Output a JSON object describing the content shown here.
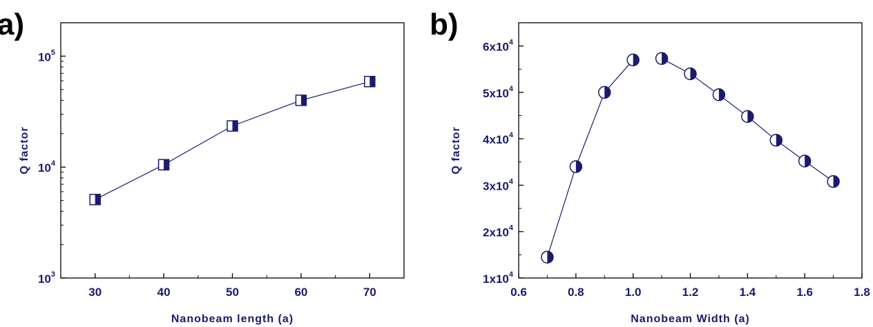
{
  "chart_data": [
    {
      "panel": "a)",
      "type": "scatter",
      "xlabel": "Nanobeam length (a)",
      "ylabel": "Q factor",
      "x": [
        30,
        40,
        50,
        60,
        70
      ],
      "y": [
        5100,
        10500,
        23500,
        40000,
        59000
      ],
      "xlim": [
        25,
        75
      ],
      "ylim": [
        1000,
        200000
      ],
      "yscale": "log",
      "xticks": [
        30,
        40,
        50,
        60,
        70
      ],
      "xtick_labels": [
        "30",
        "40",
        "50",
        "60",
        "70"
      ],
      "yticks": [
        1000,
        10000,
        100000
      ],
      "ytick_labels": [
        {
          "base": "10",
          "exp": "3"
        },
        {
          "base": "10",
          "exp": "4"
        },
        {
          "base": "10",
          "exp": "5"
        }
      ],
      "marker": "half-filled-square",
      "connected": true,
      "grid": false,
      "legend": false
    },
    {
      "panel": "b)",
      "type": "scatter",
      "xlabel": "Nanobeam Width (a)",
      "ylabel": "Q factor",
      "x": [
        0.7,
        0.8,
        0.9,
        1.0,
        1.1,
        1.2,
        1.3,
        1.4,
        1.5,
        1.6,
        1.7
      ],
      "y": [
        14500,
        34000,
        50000,
        57000,
        57300,
        54000,
        49500,
        44800,
        39700,
        35200,
        30800
      ],
      "segments": [
        [
          0,
          3
        ],
        [
          4,
          10
        ]
      ],
      "xlim": [
        0.6,
        1.8
      ],
      "ylim": [
        10000,
        65000
      ],
      "yscale": "linear",
      "xticks": [
        0.6,
        0.8,
        1.0,
        1.2,
        1.4,
        1.6,
        1.8
      ],
      "xtick_labels": [
        "0.6",
        "0.8",
        "1.0",
        "1.2",
        "1.4",
        "1.6",
        "1.8"
      ],
      "yticks": [
        10000,
        20000,
        30000,
        40000,
        50000,
        60000
      ],
      "ytick_labels": [
        {
          "base": "1x10",
          "exp": "4"
        },
        {
          "base": "2x10",
          "exp": "4"
        },
        {
          "base": "3x10",
          "exp": "4"
        },
        {
          "base": "4x10",
          "exp": "4"
        },
        {
          "base": "5x10",
          "exp": "4"
        },
        {
          "base": "6x10",
          "exp": "4"
        }
      ],
      "marker": "half-filled-circle",
      "connected": true,
      "grid": false,
      "legend": false
    }
  ],
  "colors": {
    "text": "#1a1a6e",
    "marker_fill": "#1a1a6e",
    "line": "#1a1a6e",
    "axis": "#000000"
  }
}
